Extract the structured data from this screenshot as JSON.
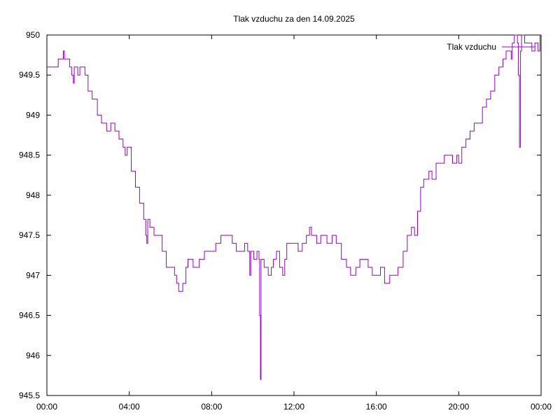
{
  "chart_data": {
    "type": "line",
    "title": "Tlak vzduchu za den 14.09.2025",
    "xlabel": "",
    "ylabel": "",
    "xlim_hours": [
      0,
      24
    ],
    "ylim": [
      945.5,
      950
    ],
    "x_ticks": [
      "00:00",
      "04:00",
      "08:00",
      "12:00",
      "16:00",
      "20:00",
      "00:00"
    ],
    "y_ticks": [
      "945.5",
      "946",
      "946.5",
      "947",
      "947.5",
      "948",
      "948.5",
      "949",
      "949.5",
      "950"
    ],
    "grid": false,
    "legend_position": "top-right",
    "series": [
      {
        "name": "Tlak vzduchu",
        "color": "#9400D3",
        "points_hours": [
          [
            0.0,
            949.6
          ],
          [
            0.5,
            949.6
          ],
          [
            0.55,
            949.7
          ],
          [
            0.75,
            949.7
          ],
          [
            0.8,
            949.8
          ],
          [
            0.85,
            949.7
          ],
          [
            1.0,
            949.7
          ],
          [
            1.1,
            949.6
          ],
          [
            1.2,
            949.5
          ],
          [
            1.28,
            949.4
          ],
          [
            1.33,
            949.6
          ],
          [
            1.5,
            949.5
          ],
          [
            1.6,
            949.6
          ],
          [
            1.85,
            949.5
          ],
          [
            2.0,
            949.3
          ],
          [
            2.2,
            949.2
          ],
          [
            2.45,
            949.0
          ],
          [
            2.65,
            948.9
          ],
          [
            2.8,
            948.9
          ],
          [
            2.9,
            948.8
          ],
          [
            3.1,
            948.9
          ],
          [
            3.3,
            948.8
          ],
          [
            3.5,
            948.7
          ],
          [
            3.7,
            948.6
          ],
          [
            3.8,
            948.5
          ],
          [
            3.9,
            948.6
          ],
          [
            4.1,
            948.3
          ],
          [
            4.3,
            948.1
          ],
          [
            4.5,
            947.9
          ],
          [
            4.7,
            947.7
          ],
          [
            4.8,
            947.5
          ],
          [
            4.85,
            947.4
          ],
          [
            4.9,
            947.7
          ],
          [
            5.0,
            947.6
          ],
          [
            5.2,
            947.5
          ],
          [
            5.4,
            947.5
          ],
          [
            5.6,
            947.3
          ],
          [
            5.8,
            947.1
          ],
          [
            6.0,
            947.1
          ],
          [
            6.2,
            947.0
          ],
          [
            6.3,
            946.9
          ],
          [
            6.4,
            946.8
          ],
          [
            6.5,
            946.8
          ],
          [
            6.6,
            946.9
          ],
          [
            6.75,
            947.1
          ],
          [
            6.85,
            947.2
          ],
          [
            7.1,
            947.1
          ],
          [
            7.4,
            947.2
          ],
          [
            7.65,
            947.3
          ],
          [
            7.9,
            947.3
          ],
          [
            8.2,
            947.4
          ],
          [
            8.45,
            947.5
          ],
          [
            8.75,
            947.5
          ],
          [
            9.0,
            947.4
          ],
          [
            9.2,
            947.3
          ],
          [
            9.4,
            947.3
          ],
          [
            9.6,
            947.4
          ],
          [
            9.75,
            947.3
          ],
          [
            9.85,
            947.0
          ],
          [
            9.9,
            947.3
          ],
          [
            10.05,
            947.2
          ],
          [
            10.2,
            947.3
          ],
          [
            10.3,
            947.2
          ],
          [
            10.33,
            946.5
          ],
          [
            10.37,
            945.7
          ],
          [
            10.4,
            947.2
          ],
          [
            10.55,
            947.1
          ],
          [
            10.75,
            947.0
          ],
          [
            10.9,
            947.1
          ],
          [
            11.0,
            947.2
          ],
          [
            11.15,
            947.3
          ],
          [
            11.3,
            947.1
          ],
          [
            11.45,
            947.0
          ],
          [
            11.55,
            947.2
          ],
          [
            11.65,
            947.4
          ],
          [
            12.0,
            947.4
          ],
          [
            12.2,
            947.3
          ],
          [
            12.4,
            947.4
          ],
          [
            12.6,
            947.5
          ],
          [
            12.75,
            947.6
          ],
          [
            12.85,
            947.5
          ],
          [
            13.1,
            947.4
          ],
          [
            13.3,
            947.5
          ],
          [
            13.6,
            947.4
          ],
          [
            13.85,
            947.5
          ],
          [
            14.05,
            947.4
          ],
          [
            14.3,
            947.2
          ],
          [
            14.55,
            947.1
          ],
          [
            14.75,
            947.0
          ],
          [
            15.0,
            947.1
          ],
          [
            15.2,
            947.2
          ],
          [
            15.45,
            947.2
          ],
          [
            15.6,
            947.1
          ],
          [
            15.8,
            947.0
          ],
          [
            16.0,
            947.0
          ],
          [
            16.2,
            947.1
          ],
          [
            16.4,
            946.9
          ],
          [
            16.65,
            947.0
          ],
          [
            16.9,
            947.0
          ],
          [
            17.05,
            947.1
          ],
          [
            17.3,
            947.3
          ],
          [
            17.5,
            947.5
          ],
          [
            17.7,
            947.6
          ],
          [
            17.85,
            947.5
          ],
          [
            18.0,
            947.8
          ],
          [
            18.15,
            948.1
          ],
          [
            18.3,
            948.2
          ],
          [
            18.55,
            948.3
          ],
          [
            18.7,
            948.2
          ],
          [
            18.9,
            948.4
          ],
          [
            19.1,
            948.4
          ],
          [
            19.3,
            948.5
          ],
          [
            19.5,
            948.5
          ],
          [
            19.7,
            948.4
          ],
          [
            19.9,
            948.5
          ],
          [
            20.0,
            948.4
          ],
          [
            20.15,
            948.6
          ],
          [
            20.35,
            948.7
          ],
          [
            20.55,
            948.8
          ],
          [
            20.75,
            948.9
          ],
          [
            20.95,
            948.9
          ],
          [
            21.15,
            949.1
          ],
          [
            21.35,
            949.2
          ],
          [
            21.55,
            949.3
          ],
          [
            21.75,
            949.5
          ],
          [
            21.95,
            949.6
          ],
          [
            22.15,
            949.7
          ],
          [
            22.3,
            949.8
          ],
          [
            22.45,
            949.8
          ],
          [
            22.55,
            949.7
          ],
          [
            22.6,
            949.9
          ],
          [
            22.7,
            950.0
          ],
          [
            22.85,
            949.9
          ],
          [
            22.9,
            949.5
          ],
          [
            22.95,
            948.6
          ],
          [
            23.0,
            949.8
          ],
          [
            23.05,
            950.0
          ],
          [
            23.2,
            949.9
          ],
          [
            23.4,
            949.9
          ],
          [
            23.55,
            949.8
          ],
          [
            23.7,
            949.9
          ],
          [
            23.85,
            949.8
          ],
          [
            23.95,
            950.0
          ],
          [
            24.0,
            950.0
          ]
        ]
      }
    ]
  }
}
